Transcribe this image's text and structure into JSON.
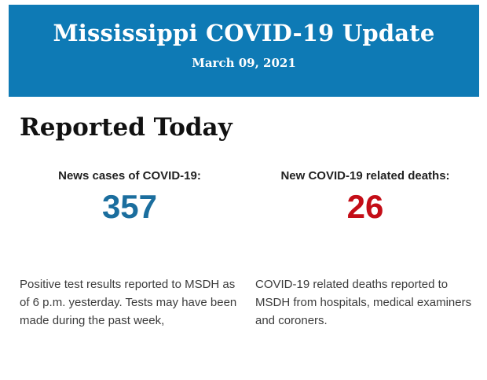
{
  "banner": {
    "title": "Mississippi COVID-19 Update",
    "date": "March 09, 2021",
    "background_color": "#0e7ab5",
    "text_color": "#ffffff"
  },
  "section": {
    "heading": "Reported Today"
  },
  "stats": {
    "cases": {
      "label": "News cases of COVID-19:",
      "value": "357",
      "value_color": "#1b6e9e",
      "description": "Positive test results reported to MSDH as of 6 p.m. yesterday. Tests may have been made during the past week,"
    },
    "deaths": {
      "label": "New COVID-19 related deaths:",
      "value": "26",
      "value_color": "#c40d17",
      "description": "COVID-19 related deaths reported to MSDH from hospitals, medical examiners and coroners."
    }
  }
}
